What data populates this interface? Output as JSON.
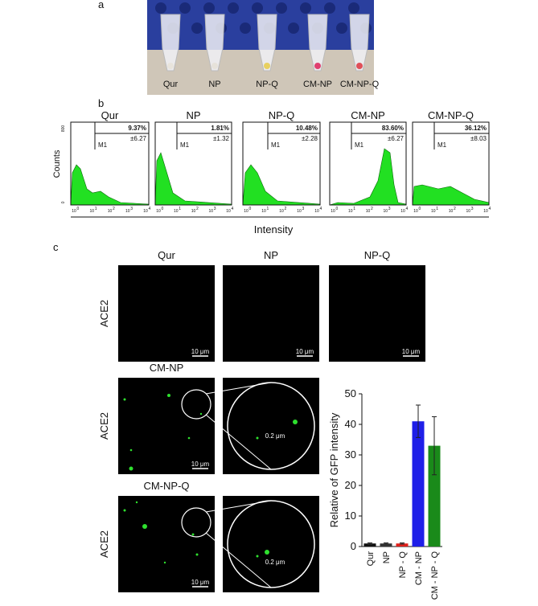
{
  "panel_a": {
    "label": "a",
    "tubes": [
      "Qur",
      "NP",
      "NP-Q",
      "CM-NP",
      "CM-NP-Q"
    ]
  },
  "panel_b": {
    "label": "b",
    "y_axis_label": "Counts",
    "x_axis_label": "Intensity",
    "y_ticks": [
      "800",
      "0"
    ],
    "x_tick_base": "10",
    "x_tick_exponents": [
      "0",
      "1",
      "2",
      "3",
      "4"
    ],
    "histograms": [
      {
        "title": "Qur",
        "gate": "M1",
        "percent": "9.37%",
        "sd": "±6.27"
      },
      {
        "title": "NP",
        "gate": "M1",
        "percent": "1.81%",
        "sd": "±1.32"
      },
      {
        "title": "NP-Q",
        "gate": "M1",
        "percent": "10.48%",
        "sd": "±2.28"
      },
      {
        "title": "CM-NP",
        "gate": "M1",
        "percent": "83.60%",
        "sd": "±6.27"
      },
      {
        "title": "CM-NP-Q",
        "gate": "M1",
        "percent": "36.12%",
        "sd": "±8.03"
      }
    ]
  },
  "panel_c": {
    "label": "c",
    "columns": [
      "Qur",
      "NP",
      "NP-Q"
    ],
    "row_label": "ACE2",
    "rows": [
      "CM-NP",
      "CM-NP-Q"
    ],
    "scale_bar": "10 μm",
    "zoom_scale": "0.2 μm"
  },
  "chart_data": {
    "type": "bar",
    "y_label": "Relative of GFP intensity",
    "categories": [
      "Qur",
      "NP",
      "NP - Q",
      "CM - NP",
      "CM - NP - Q"
    ],
    "values": [
      1,
      1,
      1,
      41,
      33
    ],
    "errors": [
      0.2,
      0.2,
      0.2,
      5.3,
      9.5
    ],
    "colors": [
      "#111111",
      "#333333",
      "#e0201b",
      "#1f1fe8",
      "#1a8a1a"
    ],
    "ylim": [
      0,
      50
    ],
    "yticks": [
      0,
      10,
      20,
      30,
      40,
      50
    ]
  }
}
